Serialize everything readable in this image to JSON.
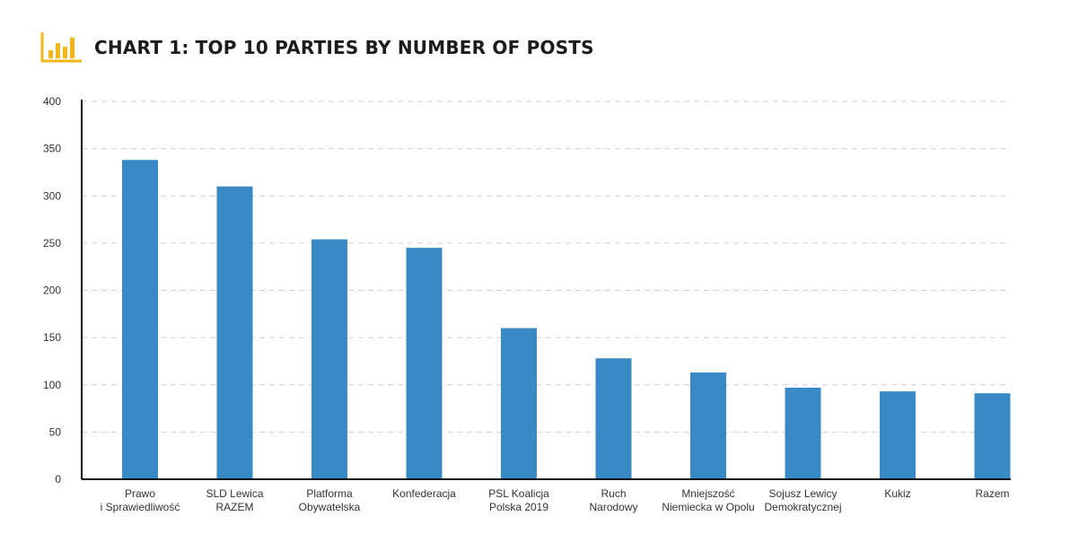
{
  "chart_title": "CHART 1: TOP 10 PARTIES BY NUMBER OF POSTS",
  "colors": {
    "bar": "#3889c4",
    "icon": "#f2b619",
    "grid": "#cfcfcf",
    "axis": "#111111"
  },
  "chart_data": {
    "type": "bar",
    "title": "CHART 1: TOP 10 PARTIES BY NUMBER OF POSTS",
    "xlabel": "",
    "ylabel": "",
    "ylim": [
      0,
      400
    ],
    "yticks": [
      0,
      50,
      100,
      150,
      200,
      250,
      300,
      350,
      400
    ],
    "grid": true,
    "categories": [
      [
        "Prawo",
        "i Sprawiedliwość"
      ],
      [
        "SLD Lewica",
        "RAZEM"
      ],
      [
        "Platforma",
        "Obywatelska"
      ],
      [
        "Konfederacja"
      ],
      [
        "PSL Koalicja",
        "Polska 2019"
      ],
      [
        "Ruch",
        "Narodowy"
      ],
      [
        "Mniejszość",
        "Niemiecka w Opolu"
      ],
      [
        "Sojusz Lewicy",
        "Demokratycznej"
      ],
      [
        "Kukiz"
      ],
      [
        "Razem"
      ]
    ],
    "values": [
      338,
      310,
      254,
      245,
      160,
      128,
      113,
      97,
      93,
      91
    ]
  }
}
